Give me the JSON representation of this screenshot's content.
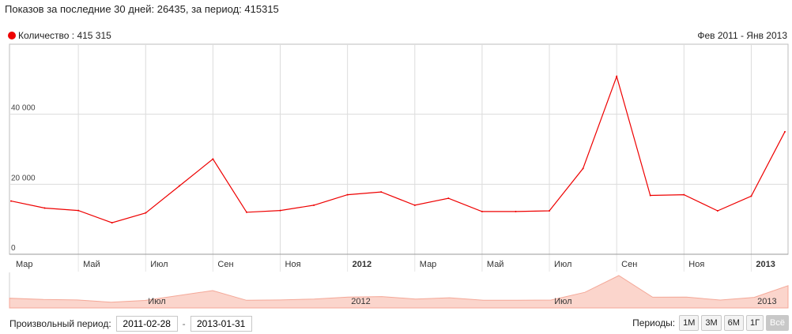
{
  "summary_text": "Показов за последние 30 дней: 26435, за период: 415315",
  "legend": {
    "label": "Количество : 415 315",
    "color": "#ee0000"
  },
  "range_label": "Фев 2011 - Янв 2013",
  "controls": {
    "period_label": "Произвольный период:",
    "start_date": "2011-02-28",
    "end_date": "2013-01-31",
    "dash": "-",
    "periods_label": "Периоды:",
    "buttons": [
      "1М",
      "3М",
      "6М",
      "1Г",
      "Всё"
    ],
    "active_button": "Всё"
  },
  "chart_data": {
    "type": "line",
    "series": [
      {
        "name": "Количество",
        "color": "#ee0000",
        "values": [
          15200,
          13200,
          12500,
          9000,
          11800,
          19500,
          27200,
          12000,
          12500,
          14000,
          17000,
          17800,
          14000,
          16000,
          12200,
          12200,
          12400,
          24500,
          50800,
          16800,
          17000,
          12400,
          16600,
          35000
        ]
      }
    ],
    "ylim": [
      0,
      60000
    ],
    "yticks": [
      {
        "value": 0,
        "label": "0"
      },
      {
        "value": 20000,
        "label": "20 000"
      },
      {
        "value": 40000,
        "label": "40 000"
      }
    ],
    "xticks": [
      {
        "index": 0,
        "label": "Мар",
        "bold": false,
        "grid": false
      },
      {
        "index": 2,
        "label": "Май",
        "bold": false,
        "grid": true
      },
      {
        "index": 4,
        "label": "Июл",
        "bold": false,
        "grid": true
      },
      {
        "index": 6,
        "label": "Сен",
        "bold": false,
        "grid": true
      },
      {
        "index": 8,
        "label": "Ноя",
        "bold": false,
        "grid": true
      },
      {
        "index": 10,
        "label": "2012",
        "bold": true,
        "grid": true
      },
      {
        "index": 12,
        "label": "Мар",
        "bold": false,
        "grid": true
      },
      {
        "index": 14,
        "label": "Май",
        "bold": false,
        "grid": true
      },
      {
        "index": 16,
        "label": "Июл",
        "bold": false,
        "grid": true
      },
      {
        "index": 18,
        "label": "Сен",
        "bold": false,
        "grid": true
      },
      {
        "index": 20,
        "label": "Ноя",
        "bold": false,
        "grid": true
      },
      {
        "index": 22,
        "label": "2013",
        "bold": true,
        "grid": true
      }
    ],
    "navigator_labels": [
      {
        "index": 4,
        "label": "Июл"
      },
      {
        "index": 10,
        "label": "2012"
      },
      {
        "index": 16,
        "label": "Июл"
      },
      {
        "index": 22,
        "label": "2013"
      }
    ],
    "navigator_fill": "#fbd5cc",
    "grid": true
  }
}
